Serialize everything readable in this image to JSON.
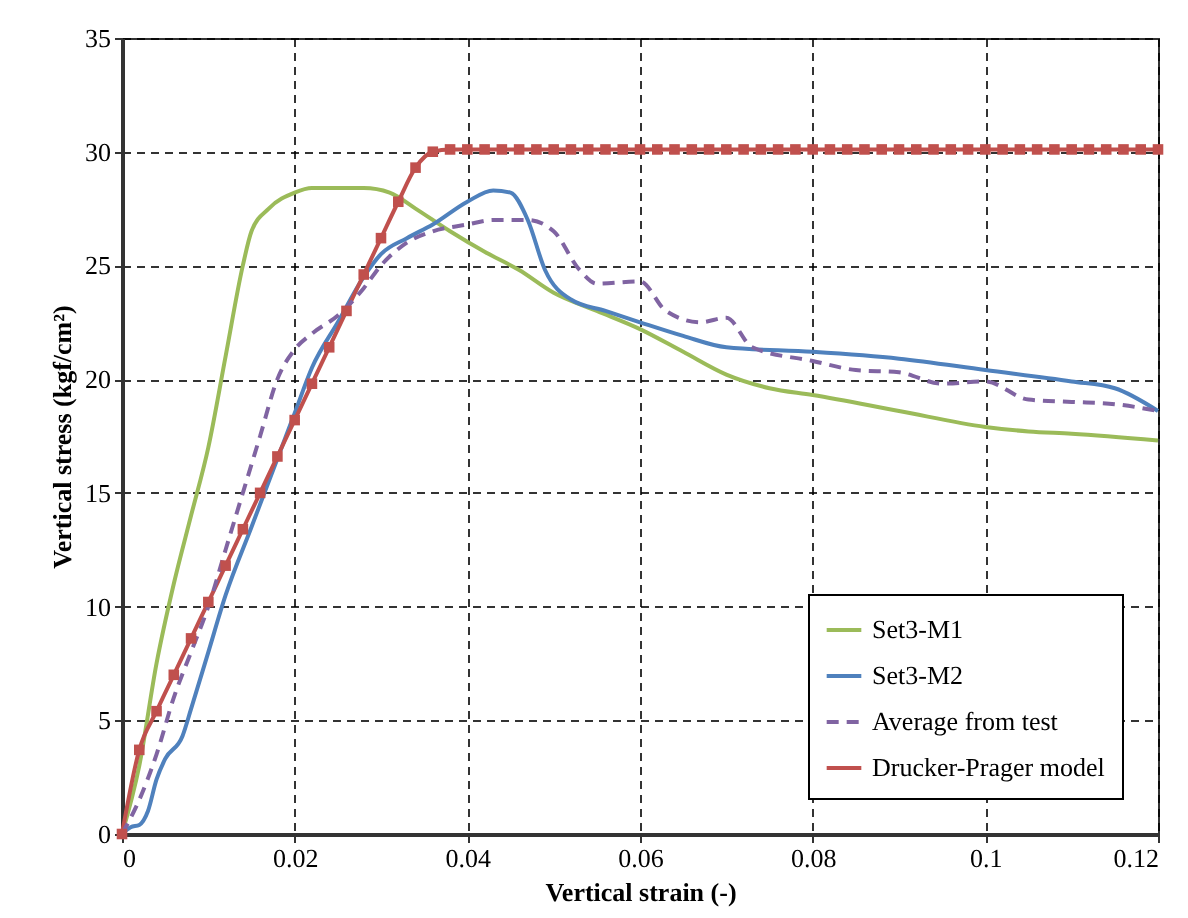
{
  "chart_data": {
    "type": "line",
    "xlabel": "Vertical strain (-)",
    "ylabel": "Vertical stress (kgf/cm²)",
    "xlim": [
      0,
      0.12
    ],
    "ylim": [
      0,
      35
    ],
    "xticks": [
      0,
      0.02,
      0.04,
      0.06,
      0.08,
      0.1,
      0.12
    ],
    "yticks": [
      0,
      5,
      10,
      15,
      20,
      25,
      30,
      35
    ],
    "grid": true,
    "legend": "bottom right",
    "marker": "none",
    "series": [
      {
        "name": "Set3-M1",
        "color": "#9bbb59",
        "x": [
          0,
          0.002,
          0.004,
          0.006,
          0.008,
          0.01,
          0.012,
          0.014,
          0.015,
          0.017,
          0.02,
          0.022,
          0.028,
          0.031,
          0.034,
          0.038,
          0.042,
          0.046,
          0.05,
          0.055,
          0.06,
          0.065,
          0.07,
          0.075,
          0.08,
          0.09,
          0.1,
          0.105,
          0.11,
          0.12
        ],
        "values": [
          0,
          3,
          7.5,
          11,
          14,
          17,
          21,
          25,
          26.5,
          27.5,
          28.2,
          28.4,
          28.4,
          28.2,
          27.5,
          26.5,
          25.6,
          24.8,
          23.8,
          23,
          22.2,
          21.2,
          20.2,
          19.6,
          19.3,
          18.6,
          17.9,
          17.7,
          17.6,
          17.3
        ]
      },
      {
        "name": "Set3-M2",
        "color": "#4f81bd",
        "x": [
          0,
          0.001,
          0.002,
          0.003,
          0.004,
          0.005,
          0.007,
          0.008,
          0.01,
          0.012,
          0.015,
          0.018,
          0.02,
          0.022,
          0.025,
          0.028,
          0.03,
          0.033,
          0.036,
          0.04,
          0.043,
          0.045,
          0.047,
          0.049,
          0.052,
          0.056,
          0.06,
          0.065,
          0.07,
          0.08,
          0.09,
          0.1,
          0.11,
          0.115,
          0.12
        ],
        "values": [
          0,
          0.3,
          0.4,
          1,
          2.4,
          3.3,
          4.3,
          5.5,
          8,
          10.5,
          13.5,
          16.5,
          18.5,
          20.5,
          22.5,
          24.5,
          25.5,
          26.2,
          26.8,
          27.8,
          28.3,
          28.2,
          27,
          24.8,
          23.5,
          23,
          22.5,
          21.9,
          21.4,
          21.2,
          20.9,
          20.4,
          19.9,
          19.6,
          18.6
        ]
      },
      {
        "name": "Average from test",
        "color": "#8064a2",
        "line_style": "dashed",
        "x": [
          0,
          0.002,
          0.004,
          0.006,
          0.008,
          0.01,
          0.012,
          0.014,
          0.016,
          0.018,
          0.02,
          0.022,
          0.025,
          0.028,
          0.03,
          0.033,
          0.036,
          0.04,
          0.043,
          0.047,
          0.05,
          0.053,
          0.055,
          0.06,
          0.063,
          0.067,
          0.07,
          0.073,
          0.08,
          0.085,
          0.09,
          0.095,
          0.1,
          0.105,
          0.11,
          0.115,
          0.12
        ],
        "values": [
          0,
          1.5,
          3.5,
          6,
          8,
          10,
          12.5,
          15,
          17.5,
          20,
          21.3,
          22,
          22.8,
          24,
          25,
          26,
          26.5,
          26.8,
          27,
          27,
          26.5,
          24.8,
          24.2,
          24.3,
          23,
          22.5,
          22.7,
          21.4,
          20.8,
          20.4,
          20.3,
          19.8,
          19.9,
          19.1,
          19,
          18.9,
          18.6
        ]
      },
      {
        "name": "Drucker-Prager model",
        "color": "#c0504d",
        "marker": "square",
        "x": [
          0,
          0.002,
          0.004,
          0.006,
          0.008,
          0.01,
          0.012,
          0.014,
          0.016,
          0.018,
          0.02,
          0.022,
          0.024,
          0.026,
          0.028,
          0.03,
          0.032,
          0.034,
          0.036,
          0.038,
          0.04,
          0.042,
          0.044,
          0.046,
          0.048,
          0.05,
          0.052,
          0.054,
          0.056,
          0.058,
          0.06,
          0.062,
          0.064,
          0.066,
          0.068,
          0.07,
          0.072,
          0.074,
          0.076,
          0.078,
          0.08,
          0.082,
          0.084,
          0.086,
          0.088,
          0.09,
          0.092,
          0.094,
          0.096,
          0.098,
          0.1,
          0.102,
          0.104,
          0.106,
          0.108,
          0.11,
          0.112,
          0.114,
          0.116,
          0.118,
          0.12
        ],
        "values": [
          0,
          3.7,
          5.4,
          7,
          8.6,
          10.2,
          11.8,
          13.4,
          15,
          16.6,
          18.2,
          19.8,
          21.4,
          23,
          24.6,
          26.2,
          27.8,
          29.3,
          30,
          30.1,
          30.1,
          30.1,
          30.1,
          30.1,
          30.1,
          30.1,
          30.1,
          30.1,
          30.1,
          30.1,
          30.1,
          30.1,
          30.1,
          30.1,
          30.1,
          30.1,
          30.1,
          30.1,
          30.1,
          30.1,
          30.1,
          30.1,
          30.1,
          30.1,
          30.1,
          30.1,
          30.1,
          30.1,
          30.1,
          30.1,
          30.1,
          30.1,
          30.1,
          30.1,
          30.1,
          30.1,
          30.1,
          30.1,
          30.1,
          30.1,
          30.1
        ]
      }
    ]
  }
}
